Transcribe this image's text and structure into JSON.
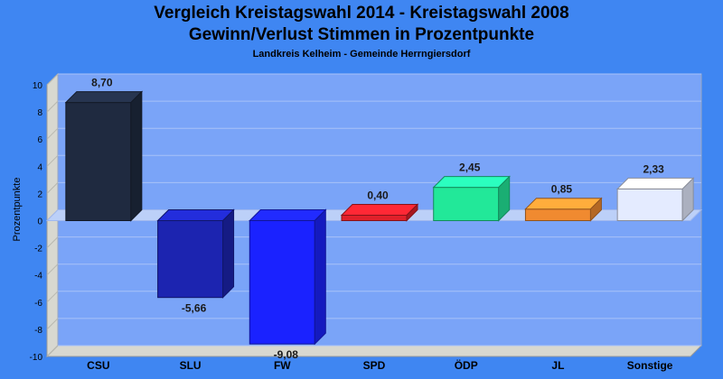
{
  "header": {
    "title_line1": "Vergleich Kreistagswahl 2014 - Kreistagswahl 2008",
    "title_line2": "Gewinn/Verlust Stimmen in Prozentpunkte",
    "subtitle": "Landkreis Kelheim - Gemeinde Herrngiersdorf"
  },
  "chart_data": {
    "type": "bar",
    "title": "Vergleich Kreistagswahl 2014 - Kreistagswahl 2008 / Gewinn/Verlust Stimmen in Prozentpunkte",
    "subtitle": "Landkreis Kelheim - Gemeinde Herrngiersdorf",
    "xlabel": "",
    "ylabel": "Prozentpunkte",
    "ylim": [
      -10,
      10
    ],
    "yticks": [
      10,
      8,
      6,
      4,
      2,
      0,
      -2,
      -4,
      -6,
      -8,
      -10
    ],
    "grid": true,
    "style": "3d",
    "categories": [
      "CSU",
      "SLU",
      "FW",
      "SPD",
      "ÖDP",
      "JL",
      "Sonstige"
    ],
    "values": [
      8.7,
      -5.66,
      -9.08,
      0.4,
      2.45,
      0.85,
      2.33
    ],
    "labels": [
      "8,70",
      "-5,66",
      "-9,08",
      "0,40",
      "2,45",
      "0,85",
      "2,33"
    ],
    "colors": [
      "#1f2a40",
      "#1c24b0",
      "#1a22ff",
      "#e0202a",
      "#22e899",
      "#f08a30",
      "#e4ebff"
    ]
  },
  "colors": {
    "background": "#3f86f2",
    "plot_area": "#7aa4f8",
    "wall_side": "#d8d8d0"
  }
}
